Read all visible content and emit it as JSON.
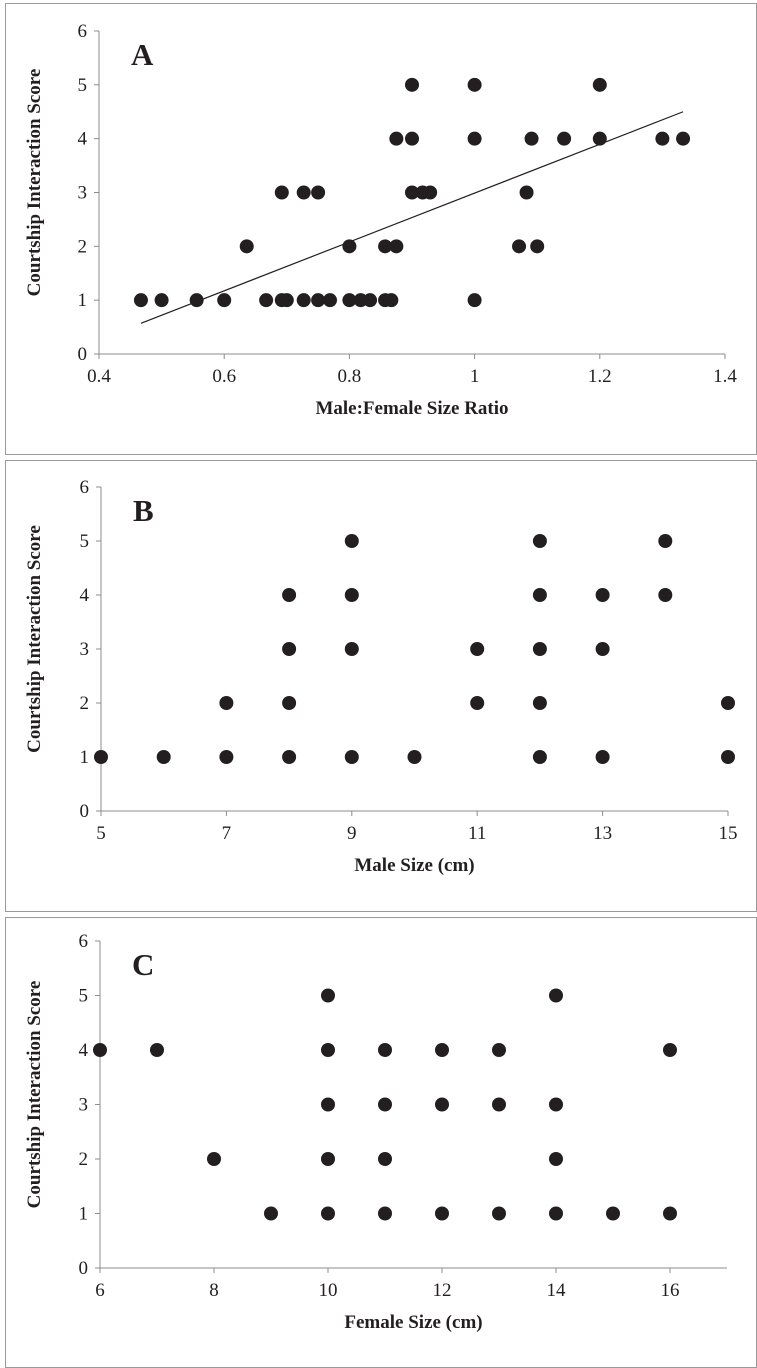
{
  "chart_data": [
    {
      "type": "scatter",
      "panel_label": "A",
      "title": "",
      "xlabel": "Male:Female Size Ratio",
      "ylabel": "Courtship Interaction Score",
      "xlim": [
        0.4,
        1.4
      ],
      "ylim": [
        0,
        6
      ],
      "xticks": [
        0.4,
        0.6,
        0.8,
        1,
        1.2,
        1.4
      ],
      "xtick_labels": [
        "0.4",
        "0.6",
        "0.8",
        "1",
        "1.2",
        "1.4"
      ],
      "yticks": [
        0,
        1,
        2,
        3,
        4,
        5,
        6
      ],
      "ytick_labels": [
        "0",
        "1",
        "2",
        "3",
        "4",
        "5",
        "6"
      ],
      "grid": false,
      "points": [
        [
          0.467,
          1
        ],
        [
          0.5,
          1
        ],
        [
          0.556,
          1
        ],
        [
          0.6,
          1
        ],
        [
          0.636,
          2
        ],
        [
          0.667,
          1
        ],
        [
          0.692,
          1
        ],
        [
          0.692,
          3
        ],
        [
          0.7,
          1
        ],
        [
          0.727,
          1
        ],
        [
          0.727,
          3
        ],
        [
          0.75,
          1
        ],
        [
          0.75,
          3
        ],
        [
          0.769,
          1
        ],
        [
          0.8,
          1
        ],
        [
          0.8,
          2
        ],
        [
          0.818,
          1
        ],
        [
          0.833,
          1
        ],
        [
          0.857,
          1
        ],
        [
          0.857,
          2
        ],
        [
          0.867,
          1
        ],
        [
          0.875,
          2
        ],
        [
          0.875,
          4
        ],
        [
          0.9,
          3
        ],
        [
          0.9,
          4
        ],
        [
          0.9,
          5
        ],
        [
          0.917,
          3
        ],
        [
          0.929,
          3
        ],
        [
          1.0,
          1
        ],
        [
          1.0,
          4
        ],
        [
          1.0,
          5
        ],
        [
          1.071,
          2
        ],
        [
          1.083,
          3
        ],
        [
          1.091,
          4
        ],
        [
          1.1,
          2
        ],
        [
          1.143,
          4
        ],
        [
          1.2,
          4
        ],
        [
          1.2,
          5
        ],
        [
          1.3,
          4
        ],
        [
          1.333,
          4
        ]
      ],
      "trendline": {
        "from": [
          0.467,
          0.57
        ],
        "to": [
          1.333,
          4.5
        ]
      }
    },
    {
      "type": "scatter",
      "panel_label": "B",
      "title": "",
      "xlabel": "Male Size (cm)",
      "ylabel": "Courtship Interaction Score",
      "xlim": [
        5,
        15
      ],
      "ylim": [
        0,
        6
      ],
      "xticks": [
        5,
        7,
        9,
        11,
        13,
        15
      ],
      "xtick_labels": [
        "5",
        "7",
        "9",
        "11",
        "13",
        "15"
      ],
      "yticks": [
        0,
        1,
        2,
        3,
        4,
        5,
        6
      ],
      "ytick_labels": [
        "0",
        "1",
        "2",
        "3",
        "4",
        "5",
        "6"
      ],
      "grid": false,
      "points": [
        [
          5,
          1
        ],
        [
          6,
          1
        ],
        [
          7,
          1
        ],
        [
          7,
          2
        ],
        [
          8,
          1
        ],
        [
          8,
          2
        ],
        [
          8,
          3
        ],
        [
          8,
          4
        ],
        [
          9,
          1
        ],
        [
          9,
          3
        ],
        [
          9,
          4
        ],
        [
          9,
          5
        ],
        [
          10,
          1
        ],
        [
          11,
          2
        ],
        [
          11,
          3
        ],
        [
          12,
          1
        ],
        [
          12,
          2
        ],
        [
          12,
          3
        ],
        [
          12,
          4
        ],
        [
          12,
          5
        ],
        [
          13,
          1
        ],
        [
          13,
          3
        ],
        [
          13,
          4
        ],
        [
          14,
          4
        ],
        [
          14,
          5
        ],
        [
          15,
          1
        ],
        [
          15,
          2
        ]
      ]
    },
    {
      "type": "scatter",
      "panel_label": "C",
      "title": "",
      "xlabel": "Female Size (cm)",
      "ylabel": "Courtship Interaction Score",
      "xlim": [
        6,
        17
      ],
      "ylim": [
        0,
        6
      ],
      "xticks": [
        6,
        8,
        10,
        12,
        14,
        16
      ],
      "xtick_labels": [
        "6",
        "8",
        "10",
        "12",
        "14",
        "16"
      ],
      "yticks": [
        0,
        1,
        2,
        3,
        4,
        5,
        6
      ],
      "ytick_labels": [
        "0",
        "1",
        "2",
        "3",
        "4",
        "5",
        "6"
      ],
      "grid": false,
      "points": [
        [
          6,
          4
        ],
        [
          7,
          4
        ],
        [
          8,
          2
        ],
        [
          9,
          1
        ],
        [
          10,
          1
        ],
        [
          10,
          2
        ],
        [
          10,
          3
        ],
        [
          10,
          4
        ],
        [
          10,
          5
        ],
        [
          11,
          1
        ],
        [
          11,
          2
        ],
        [
          11,
          3
        ],
        [
          11,
          4
        ],
        [
          12,
          1
        ],
        [
          12,
          3
        ],
        [
          12,
          4
        ],
        [
          13,
          1
        ],
        [
          13,
          3
        ],
        [
          13,
          4
        ],
        [
          14,
          1
        ],
        [
          14,
          2
        ],
        [
          14,
          3
        ],
        [
          14,
          5
        ],
        [
          15,
          1
        ],
        [
          16,
          1
        ],
        [
          16,
          4
        ]
      ]
    }
  ]
}
